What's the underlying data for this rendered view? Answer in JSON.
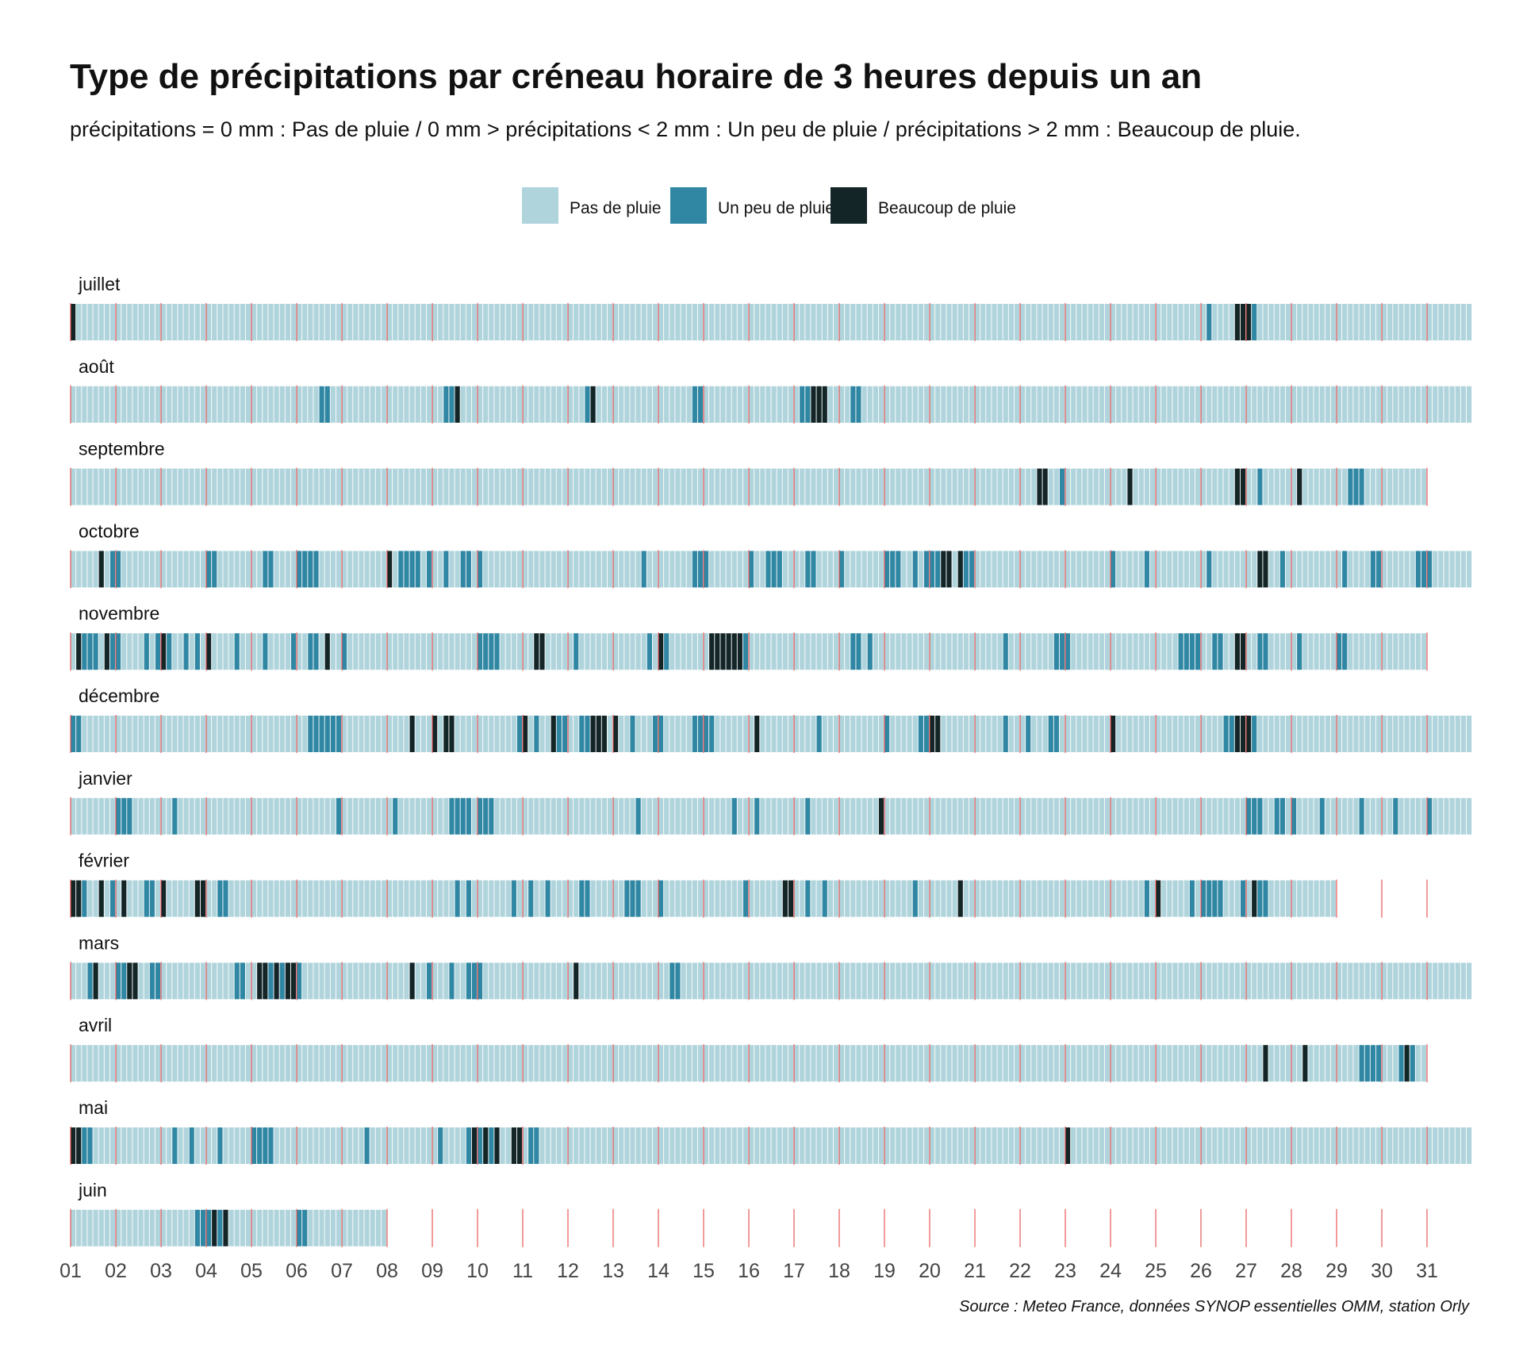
{
  "chart_data": {
    "type": "heatmap",
    "title": "Type de précipitations par créneau horaire de 3 heures depuis un an",
    "subtitle": "précipitations = 0 mm : Pas de pluie   /   0 mm > précipitations < 2 mm : Un peu de pluie   /   précipitations > 2 mm : Beaucoup de pluie.",
    "caption": "Source : Meteo France, données SYNOP essentielles OMM, station Orly",
    "legend": {
      "position": "top",
      "items": [
        {
          "key": "none",
          "label": "Pas de pluie",
          "color": "#b0d4dc"
        },
        {
          "key": "light",
          "label": "Un peu de pluie",
          "color": "#3087a3"
        },
        {
          "key": "heavy",
          "label": "Beaucoup de pluie",
          "color": "#132527"
        }
      ]
    },
    "slots_per_day": 8,
    "day_marker_color": "#e84a4a",
    "x_ticks": [
      "01",
      "02",
      "03",
      "04",
      "05",
      "06",
      "07",
      "08",
      "09",
      "10",
      "11",
      "12",
      "13",
      "14",
      "15",
      "16",
      "17",
      "18",
      "19",
      "20",
      "21",
      "22",
      "23",
      "24",
      "25",
      "26",
      "27",
      "28",
      "29",
      "30",
      "31"
    ],
    "months": [
      {
        "name": "juillet",
        "days": 31,
        "light": [
          [
            26.1,
            26.2
          ],
          [
            27.15,
            27.3
          ]
        ],
        "heavy": [
          [
            1,
            1.1
          ],
          [
            26.8,
            27.15
          ]
        ]
      },
      {
        "name": "août",
        "days": 31,
        "light": [
          [
            6.55,
            6.7
          ],
          [
            9.2,
            9.45
          ],
          [
            12.35,
            12.5
          ],
          [
            14.8,
            15.05
          ],
          [
            17.1,
            17.8
          ],
          [
            18.2,
            18.45
          ]
        ],
        "heavy": [
          [
            6.45,
            6.55
          ],
          [
            9.45,
            9.6
          ],
          [
            12.5,
            12.6
          ],
          [
            17.35,
            17.8
          ]
        ]
      },
      {
        "name": "septembre",
        "days": 30,
        "light": [
          [
            6.7,
            6.8
          ],
          [
            22.9,
            23
          ],
          [
            24.35,
            24.5
          ],
          [
            25.2,
            25.3
          ],
          [
            27.2,
            27.35
          ],
          [
            29.2,
            29.65
          ]
        ],
        "heavy": [
          [
            22.4,
            22.6
          ],
          [
            24.35,
            24.45
          ],
          [
            26.8,
            26.95
          ],
          [
            28.1,
            28.25
          ]
        ]
      },
      {
        "name": "octobre",
        "days": 31,
        "light": [
          [
            1.6,
            1.8
          ],
          [
            1.9,
            2.1
          ],
          [
            4,
            4.25
          ],
          [
            5.25,
            5.45
          ],
          [
            6,
            6.45
          ],
          [
            6.7,
            6.8
          ],
          [
            8.2,
            8.7
          ],
          [
            8.9,
            9
          ],
          [
            9.25,
            9.35
          ],
          [
            9.6,
            9.85
          ],
          [
            10,
            10.1
          ],
          [
            13.2,
            13.3
          ],
          [
            13.6,
            13.7
          ],
          [
            14.7,
            15.1
          ],
          [
            16,
            16.15
          ],
          [
            16.35,
            16.8
          ],
          [
            17.25,
            17.5
          ],
          [
            18.05,
            18.15
          ],
          [
            19,
            19.35
          ],
          [
            19.6,
            19.75
          ],
          [
            19.9,
            20.3
          ],
          [
            20.6,
            20.95
          ],
          [
            24,
            24.1
          ],
          [
            24.8,
            24.9
          ],
          [
            25.2,
            25.3
          ],
          [
            26.1,
            26.2
          ],
          [
            27.8,
            27.9
          ],
          [
            29.1,
            29.2
          ],
          [
            29.7,
            30
          ],
          [
            30.8,
            31.1
          ],
          [
            31.2,
            31.3
          ]
        ],
        "heavy": [
          [
            1.6,
            1.7
          ],
          [
            8,
            8.15
          ],
          [
            20.2,
            20.45
          ],
          [
            20.6,
            20.7
          ],
          [
            27.2,
            27.45
          ]
        ]
      },
      {
        "name": "novembre",
        "days": 30,
        "light": [
          [
            1.3,
            1.6
          ],
          [
            1.9,
            2.1
          ],
          [
            2.6,
            2.7
          ],
          [
            2.9,
            3.2
          ],
          [
            3.5,
            3.6
          ],
          [
            3.7,
            3.85
          ],
          [
            4.2,
            4.3
          ],
          [
            4.6,
            4.7
          ],
          [
            5.2,
            5.35
          ],
          [
            5.9,
            6
          ],
          [
            6.3,
            6.45
          ],
          [
            6.6,
            6.7
          ],
          [
            7.05,
            7.1
          ],
          [
            10,
            10.45
          ],
          [
            11.35,
            11.45
          ],
          [
            12.1,
            12.2
          ],
          [
            13.8,
            13.9
          ],
          [
            14.1,
            14.2
          ],
          [
            15.9,
            16.05
          ],
          [
            18.3,
            18.45
          ],
          [
            18.6,
            18.7
          ],
          [
            21.6,
            21.7
          ],
          [
            22.7,
            23.1
          ],
          [
            25.55,
            26
          ],
          [
            26.3,
            26.45
          ],
          [
            27.3,
            27.55
          ],
          [
            28.1,
            28.2
          ],
          [
            29,
            29.3
          ]
        ],
        "heavy": [
          [
            1.1,
            1.3
          ],
          [
            1.8,
            1.9
          ],
          [
            3.05,
            3.15
          ],
          [
            4.05,
            4.15
          ],
          [
            6.6,
            6.7
          ],
          [
            6.95,
            7.05
          ],
          [
            11.3,
            11.45
          ],
          [
            14.05,
            14.15
          ],
          [
            15.1,
            15.9
          ],
          [
            23.2,
            23.3
          ],
          [
            26.8,
            27.05
          ]
        ]
      },
      {
        "name": "décembre",
        "days": 31,
        "light": [
          [
            1,
            1.3
          ],
          [
            1.7,
            1.8
          ],
          [
            6.3,
            6.95
          ],
          [
            9.45,
            9.55
          ],
          [
            10.9,
            11.05
          ],
          [
            11.2,
            11.4
          ],
          [
            11.7,
            11.95
          ],
          [
            12.3,
            12.7
          ],
          [
            13.4,
            13.5
          ],
          [
            13.9,
            14.1
          ],
          [
            14.8,
            15.2
          ],
          [
            17.55,
            17.65
          ],
          [
            19,
            19.1
          ],
          [
            19.8,
            20.15
          ],
          [
            21.6,
            21.75
          ],
          [
            22.1,
            22.2
          ],
          [
            22.6,
            22.85
          ],
          [
            26.5,
            27.3
          ]
        ],
        "heavy": [
          [
            8.2,
            8.3
          ],
          [
            8.5,
            8.6
          ],
          [
            9,
            9.1
          ],
          [
            9.3,
            9.5
          ],
          [
            11.05,
            11.15
          ],
          [
            11.6,
            11.75
          ],
          [
            12.45,
            12.85
          ],
          [
            13,
            13.15
          ],
          [
            16.1,
            16.3
          ],
          [
            20,
            20.2
          ],
          [
            24,
            24.1
          ],
          [
            26.8,
            27.1
          ]
        ]
      },
      {
        "name": "janvier",
        "days": 31,
        "light": [
          [
            2.05,
            2.4
          ],
          [
            3.25,
            3.35
          ],
          [
            6.85,
            6.95
          ],
          [
            7.2,
            7.3
          ],
          [
            8.1,
            8.2
          ],
          [
            9.35,
            9.85
          ],
          [
            10.05,
            10.4
          ],
          [
            13.5,
            13.6
          ],
          [
            14.2,
            14.3
          ],
          [
            15.6,
            15.75
          ],
          [
            16.15,
            16.25
          ],
          [
            17.2,
            17.4
          ],
          [
            27,
            27.4
          ],
          [
            27.6,
            27.85
          ],
          [
            28,
            28.1
          ],
          [
            28.6,
            28.8
          ],
          [
            29.5,
            29.6
          ],
          [
            30.2,
            30.4
          ],
          [
            31,
            31.1
          ]
        ],
        "heavy": [
          [
            18.85,
            18.95
          ]
        ]
      },
      {
        "name": "février",
        "days": 28,
        "light": [
          [
            1.3,
            1.4
          ],
          [
            1.85,
            2.05
          ],
          [
            2.2,
            2.3
          ],
          [
            2.6,
            2.9
          ],
          [
            3,
            3.1
          ],
          [
            4.2,
            4.45
          ],
          [
            9.55,
            9.65
          ],
          [
            9.8,
            9.9
          ],
          [
            10.7,
            10.9
          ],
          [
            11.1,
            11.2
          ],
          [
            11.45,
            11.6
          ],
          [
            12.3,
            12.5
          ],
          [
            13.2,
            13.65
          ],
          [
            14,
            14.1
          ],
          [
            15.85,
            15.95
          ],
          [
            17.3,
            17.4
          ],
          [
            17.6,
            17.7
          ],
          [
            17.95,
            18.05
          ],
          [
            19.6,
            19.7
          ],
          [
            20.7,
            20.8
          ],
          [
            24.8,
            24.9
          ],
          [
            25.7,
            25.85
          ],
          [
            26,
            26.5
          ],
          [
            26.9,
            27
          ],
          [
            27.3,
            27.55
          ],
          [
            29.3,
            29.6
          ]
        ],
        "heavy": [
          [
            1,
            1.3
          ],
          [
            1.6,
            1.7
          ],
          [
            2.1,
            2.2
          ],
          [
            2.95,
            3.1
          ],
          [
            3.8,
            4
          ],
          [
            16.7,
            16.95
          ],
          [
            18.95,
            19.05
          ],
          [
            20.65,
            20.75
          ],
          [
            25,
            25.15
          ],
          [
            26.7,
            26.8
          ],
          [
            27.15,
            27.3
          ],
          [
            29.35,
            29.45
          ]
        ]
      },
      {
        "name": "mars",
        "days": 31,
        "light": [
          [
            1.35,
            1.5
          ],
          [
            2.05,
            2.2
          ],
          [
            2.75,
            2.95
          ],
          [
            4.6,
            4.85
          ],
          [
            5.1,
            6.1
          ],
          [
            8.45,
            8.6
          ],
          [
            8.9,
            9
          ],
          [
            9.35,
            9.5
          ],
          [
            9.8,
            10.1
          ],
          [
            14.3,
            14.45
          ]
        ],
        "heavy": [
          [
            1.5,
            1.65
          ],
          [
            2.2,
            2.45
          ],
          [
            5.1,
            5.35
          ],
          [
            5.45,
            5.65
          ],
          [
            5.75,
            5.95
          ],
          [
            8.55,
            8.65
          ],
          [
            12.1,
            12.2
          ]
        ]
      },
      {
        "name": "avril",
        "days": 30,
        "light": [
          [
            6.45,
            6.55
          ],
          [
            17.95,
            18.05
          ],
          [
            28.25,
            28.4
          ],
          [
            29.45,
            30.05
          ],
          [
            30.4,
            30.8
          ]
        ],
        "heavy": [
          [
            27.35,
            27.5
          ],
          [
            28.2,
            28.35
          ],
          [
            30.45,
            30.6
          ]
        ]
      },
      {
        "name": "mai",
        "days": 31,
        "light": [
          [
            1.2,
            1.55
          ],
          [
            3.3,
            3.4
          ],
          [
            3.6,
            3.7
          ],
          [
            4.2,
            4.35
          ],
          [
            5.05,
            5.5
          ],
          [
            7.5,
            7.6
          ],
          [
            9.15,
            9.25
          ],
          [
            9.8,
            10.1
          ],
          [
            10.3,
            10.45
          ],
          [
            11.1,
            11.35
          ],
          [
            22.95,
            23.1
          ]
        ],
        "heavy": [
          [
            1.05,
            1.2
          ],
          [
            9.85,
            9.95
          ],
          [
            10.15,
            10.25
          ],
          [
            10.4,
            10.5
          ],
          [
            10.7,
            11.05
          ],
          [
            23.05,
            23.15
          ]
        ]
      },
      {
        "name": "juin",
        "days": 7,
        "light": [
          [
            3.8,
            4.1
          ],
          [
            4.25,
            4.45
          ],
          [
            5.7,
            5.8
          ],
          [
            6.05,
            6.2
          ]
        ],
        "heavy": [
          [
            3.7,
            3.8
          ],
          [
            4.1,
            4.3
          ],
          [
            4.35,
            4.45
          ]
        ]
      }
    ]
  }
}
